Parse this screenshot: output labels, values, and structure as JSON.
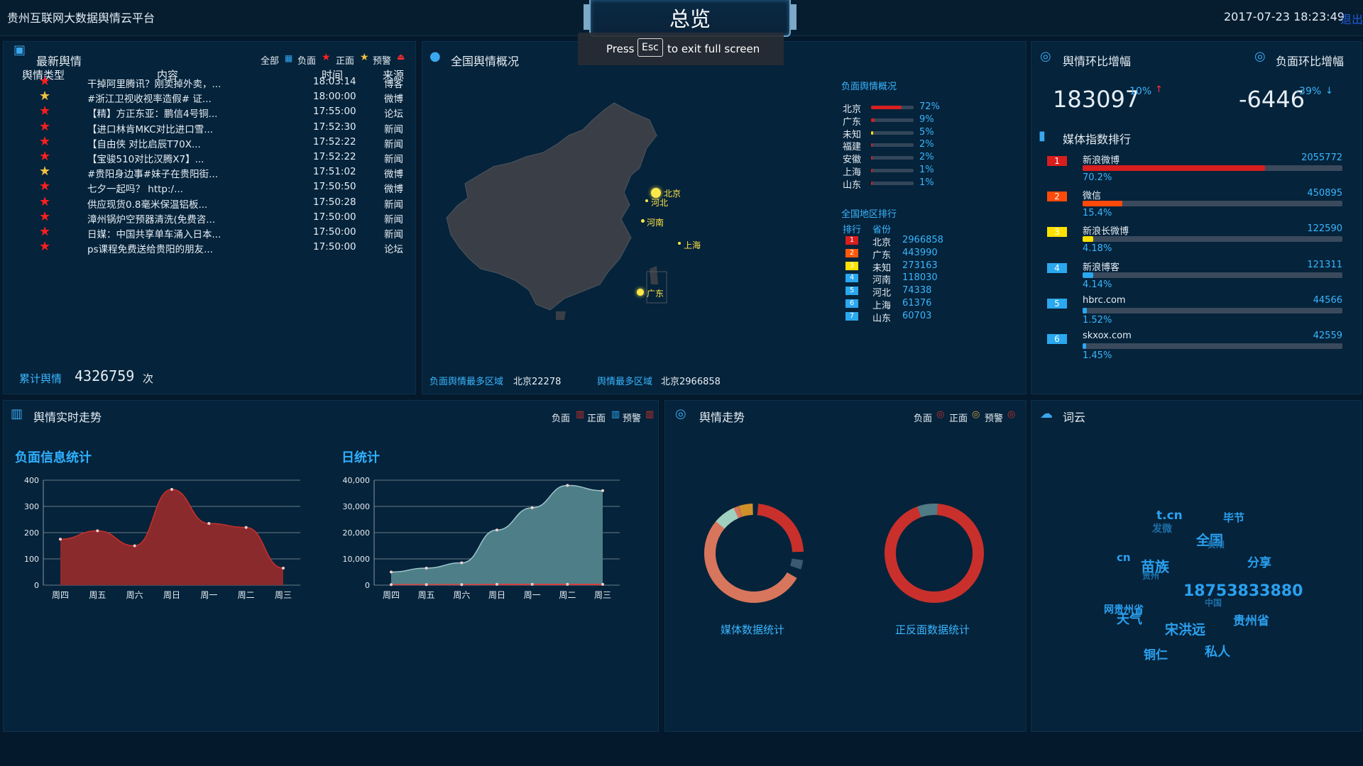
{
  "header": {
    "app_title": "贵州互联网大数据舆情云平台",
    "main_title": "总览",
    "datetime": "2017-07-23 18:23:49",
    "logout": "退出",
    "fullscreen_toast": {
      "press": "Press",
      "key": "Esc",
      "rest": "to exit full screen"
    }
  },
  "news": {
    "title": "最新舆情",
    "filters": [
      "全部",
      "负面",
      "正面",
      "预警"
    ],
    "columns": [
      "舆情类型",
      "内容",
      "时间",
      "来源"
    ],
    "rows": [
      {
        "star": "red",
        "content": "干掉阿里腾讯？刚卖掉外卖，...",
        "time": "18:03:14",
        "source": "博客"
      },
      {
        "star": "gold",
        "content": "#浙江卫视收视率造假# 证...",
        "time": "18:00:00",
        "source": "微博"
      },
      {
        "star": "red",
        "content": "【精】方正东亚：鹏信4号铜...",
        "time": "17:55:00",
        "source": "论坛"
      },
      {
        "star": "red",
        "content": "【进口林肯MKC对比进口雪...",
        "time": "17:52:30",
        "source": "新闻"
      },
      {
        "star": "red",
        "content": "【自由侠 对比启辰T70X...",
        "time": "17:52:22",
        "source": "新闻"
      },
      {
        "star": "red",
        "content": "【宝骏510对比汉腾X7】...",
        "time": "17:52:22",
        "source": "新闻"
      },
      {
        "star": "gold",
        "content": "#贵阳身边事#妹子在贵阳街...",
        "time": "17:51:02",
        "source": "微博"
      },
      {
        "star": "red",
        "content": "七夕一起吗？ http:/...",
        "time": "17:50:50",
        "source": "微博"
      },
      {
        "star": "red",
        "content": "供应现货0.8毫米保温铝板...",
        "time": "17:50:28",
        "source": "新闻"
      },
      {
        "star": "red",
        "content": "漳州锅炉空预器清洗(免费咨...",
        "time": "17:50:00",
        "source": "新闻"
      },
      {
        "star": "red",
        "content": "日媒：中国共享单车涌入日本...",
        "time": "17:50:00",
        "source": "新闻"
      },
      {
        "star": "red",
        "content": "ps课程免费送给贵阳的朋友...",
        "time": "17:50:00",
        "source": "论坛"
      }
    ],
    "total_label": "累计舆情",
    "total_value": "4326759",
    "total_unit": "次"
  },
  "map": {
    "title": "全国舆情概况",
    "cities": [
      "北京",
      "河北",
      "河南",
      "上海",
      "广东"
    ],
    "neg_title": "负面舆情概况",
    "neg_rows": [
      {
        "name": "北京",
        "pct": 72
      },
      {
        "name": "广东",
        "pct": 9
      },
      {
        "name": "未知",
        "pct": 5
      },
      {
        "name": "福建",
        "pct": 2
      },
      {
        "name": "安徽",
        "pct": 2
      },
      {
        "name": "上海",
        "pct": 1
      },
      {
        "name": "山东",
        "pct": 1
      }
    ],
    "rank_title": "全国地区排行",
    "rank_cols": [
      "排行",
      "省份"
    ],
    "rank_rows": [
      {
        "rank": "1",
        "name": "北京",
        "value": "2966858",
        "color": "#d81e1e"
      },
      {
        "rank": "2",
        "name": "广东",
        "value": "443990",
        "color": "#ff5a0a"
      },
      {
        "rank": "3",
        "name": "未知",
        "value": "273163",
        "color": "#ffe100"
      },
      {
        "rank": "4",
        "name": "河南",
        "value": "118030",
        "color": "#2aa8f0"
      },
      {
        "rank": "5",
        "name": "河北",
        "value": "74338",
        "color": "#2aa8f0"
      },
      {
        "rank": "6",
        "name": "上海",
        "value": "61376",
        "color": "#2aa8f0"
      },
      {
        "rank": "7",
        "name": "山东",
        "value": "60703",
        "color": "#2aa8f0"
      }
    ],
    "footer_neg_label": "负面舆情最多区域",
    "footer_neg_value": "北京22278",
    "footer_all_label": "舆情最多区域",
    "footer_all_value": "北京2966858"
  },
  "growth": {
    "title_left": "舆情环比增幅",
    "title_right": "负面环比增幅",
    "left_value": "183097",
    "left_pct": "10%",
    "left_arrow": "↑",
    "right_value": "-6446",
    "right_pct": "-39%",
    "right_arrow": "↓",
    "media_title": "媒体指数排行",
    "media": [
      {
        "rank": "1",
        "name": "新浪微博",
        "value": "2055772",
        "pct": "70.2%",
        "frac": 0.702,
        "color": "#d81e1e"
      },
      {
        "rank": "2",
        "name": "微信",
        "value": "450895",
        "pct": "15.4%",
        "frac": 0.154,
        "color": "#ff4a0a"
      },
      {
        "rank": "3",
        "name": "新浪长微博",
        "value": "122590",
        "pct": "4.18%",
        "frac": 0.0418,
        "color": "#ffe100"
      },
      {
        "rank": "4",
        "name": "新浪博客",
        "value": "121311",
        "pct": "4.14%",
        "frac": 0.0414,
        "color": "#2aa8f0"
      },
      {
        "rank": "5",
        "name": "hbrc.com",
        "value": "44566",
        "pct": "1.52%",
        "frac": 0.0152,
        "color": "#2aa8f0"
      },
      {
        "rank": "6",
        "name": "skxox.com",
        "value": "42559",
        "pct": "1.45%",
        "frac": 0.0145,
        "color": "#2aa8f0"
      }
    ]
  },
  "realtime": {
    "title": "舆情实时走势",
    "legend": [
      "负面",
      "正面",
      "预警"
    ]
  },
  "trend": {
    "title": "舆情走势",
    "legend": [
      "负面",
      "正面",
      "预警"
    ],
    "donut_labels": [
      "媒体数据统计",
      "正反面数据统计"
    ]
  },
  "cloud": {
    "title": "词云",
    "words": [
      "t.cn",
      "毕节",
      "发微",
      "全国",
      "贵阳",
      "cn",
      "分享",
      "苗族",
      "贵州",
      "18753833880",
      "中国",
      "贵州省",
      "天气",
      "网贵州省",
      "宋洪远",
      "铜仁",
      "私人",
      "贵州省"
    ]
  },
  "colors": {
    "negative": "#c9302c",
    "positive": "#5aa0a8",
    "accent": "#2fa8f5",
    "gold": "#f0c040"
  },
  "chart_data": [
    {
      "type": "area",
      "title": "负面信息统计",
      "categories": [
        "周四",
        "周五",
        "周六",
        "周日",
        "周一",
        "周二",
        "周三"
      ],
      "series": [
        {
          "name": "负面",
          "values": [
            175,
            207,
            150,
            365,
            235,
            220,
            65
          ]
        }
      ],
      "ylim": [
        0,
        400
      ],
      "yticks": [
        "0",
        "100",
        "200",
        "300",
        "400"
      ]
    },
    {
      "type": "area",
      "title": "日统计",
      "categories": [
        "周四",
        "周五",
        "周六",
        "周日",
        "周一",
        "周二",
        "周三"
      ],
      "series": [
        {
          "name": "正面",
          "values": [
            5000,
            6500,
            8500,
            21000,
            29500,
            38000,
            36000
          ]
        },
        {
          "name": "负面",
          "values": [
            200,
            200,
            200,
            300,
            300,
            300,
            300
          ]
        }
      ],
      "ylim": [
        0,
        40000
      ],
      "yticks": [
        "0",
        "10,000",
        "20,000",
        "30,000",
        "40,000"
      ]
    }
  ]
}
